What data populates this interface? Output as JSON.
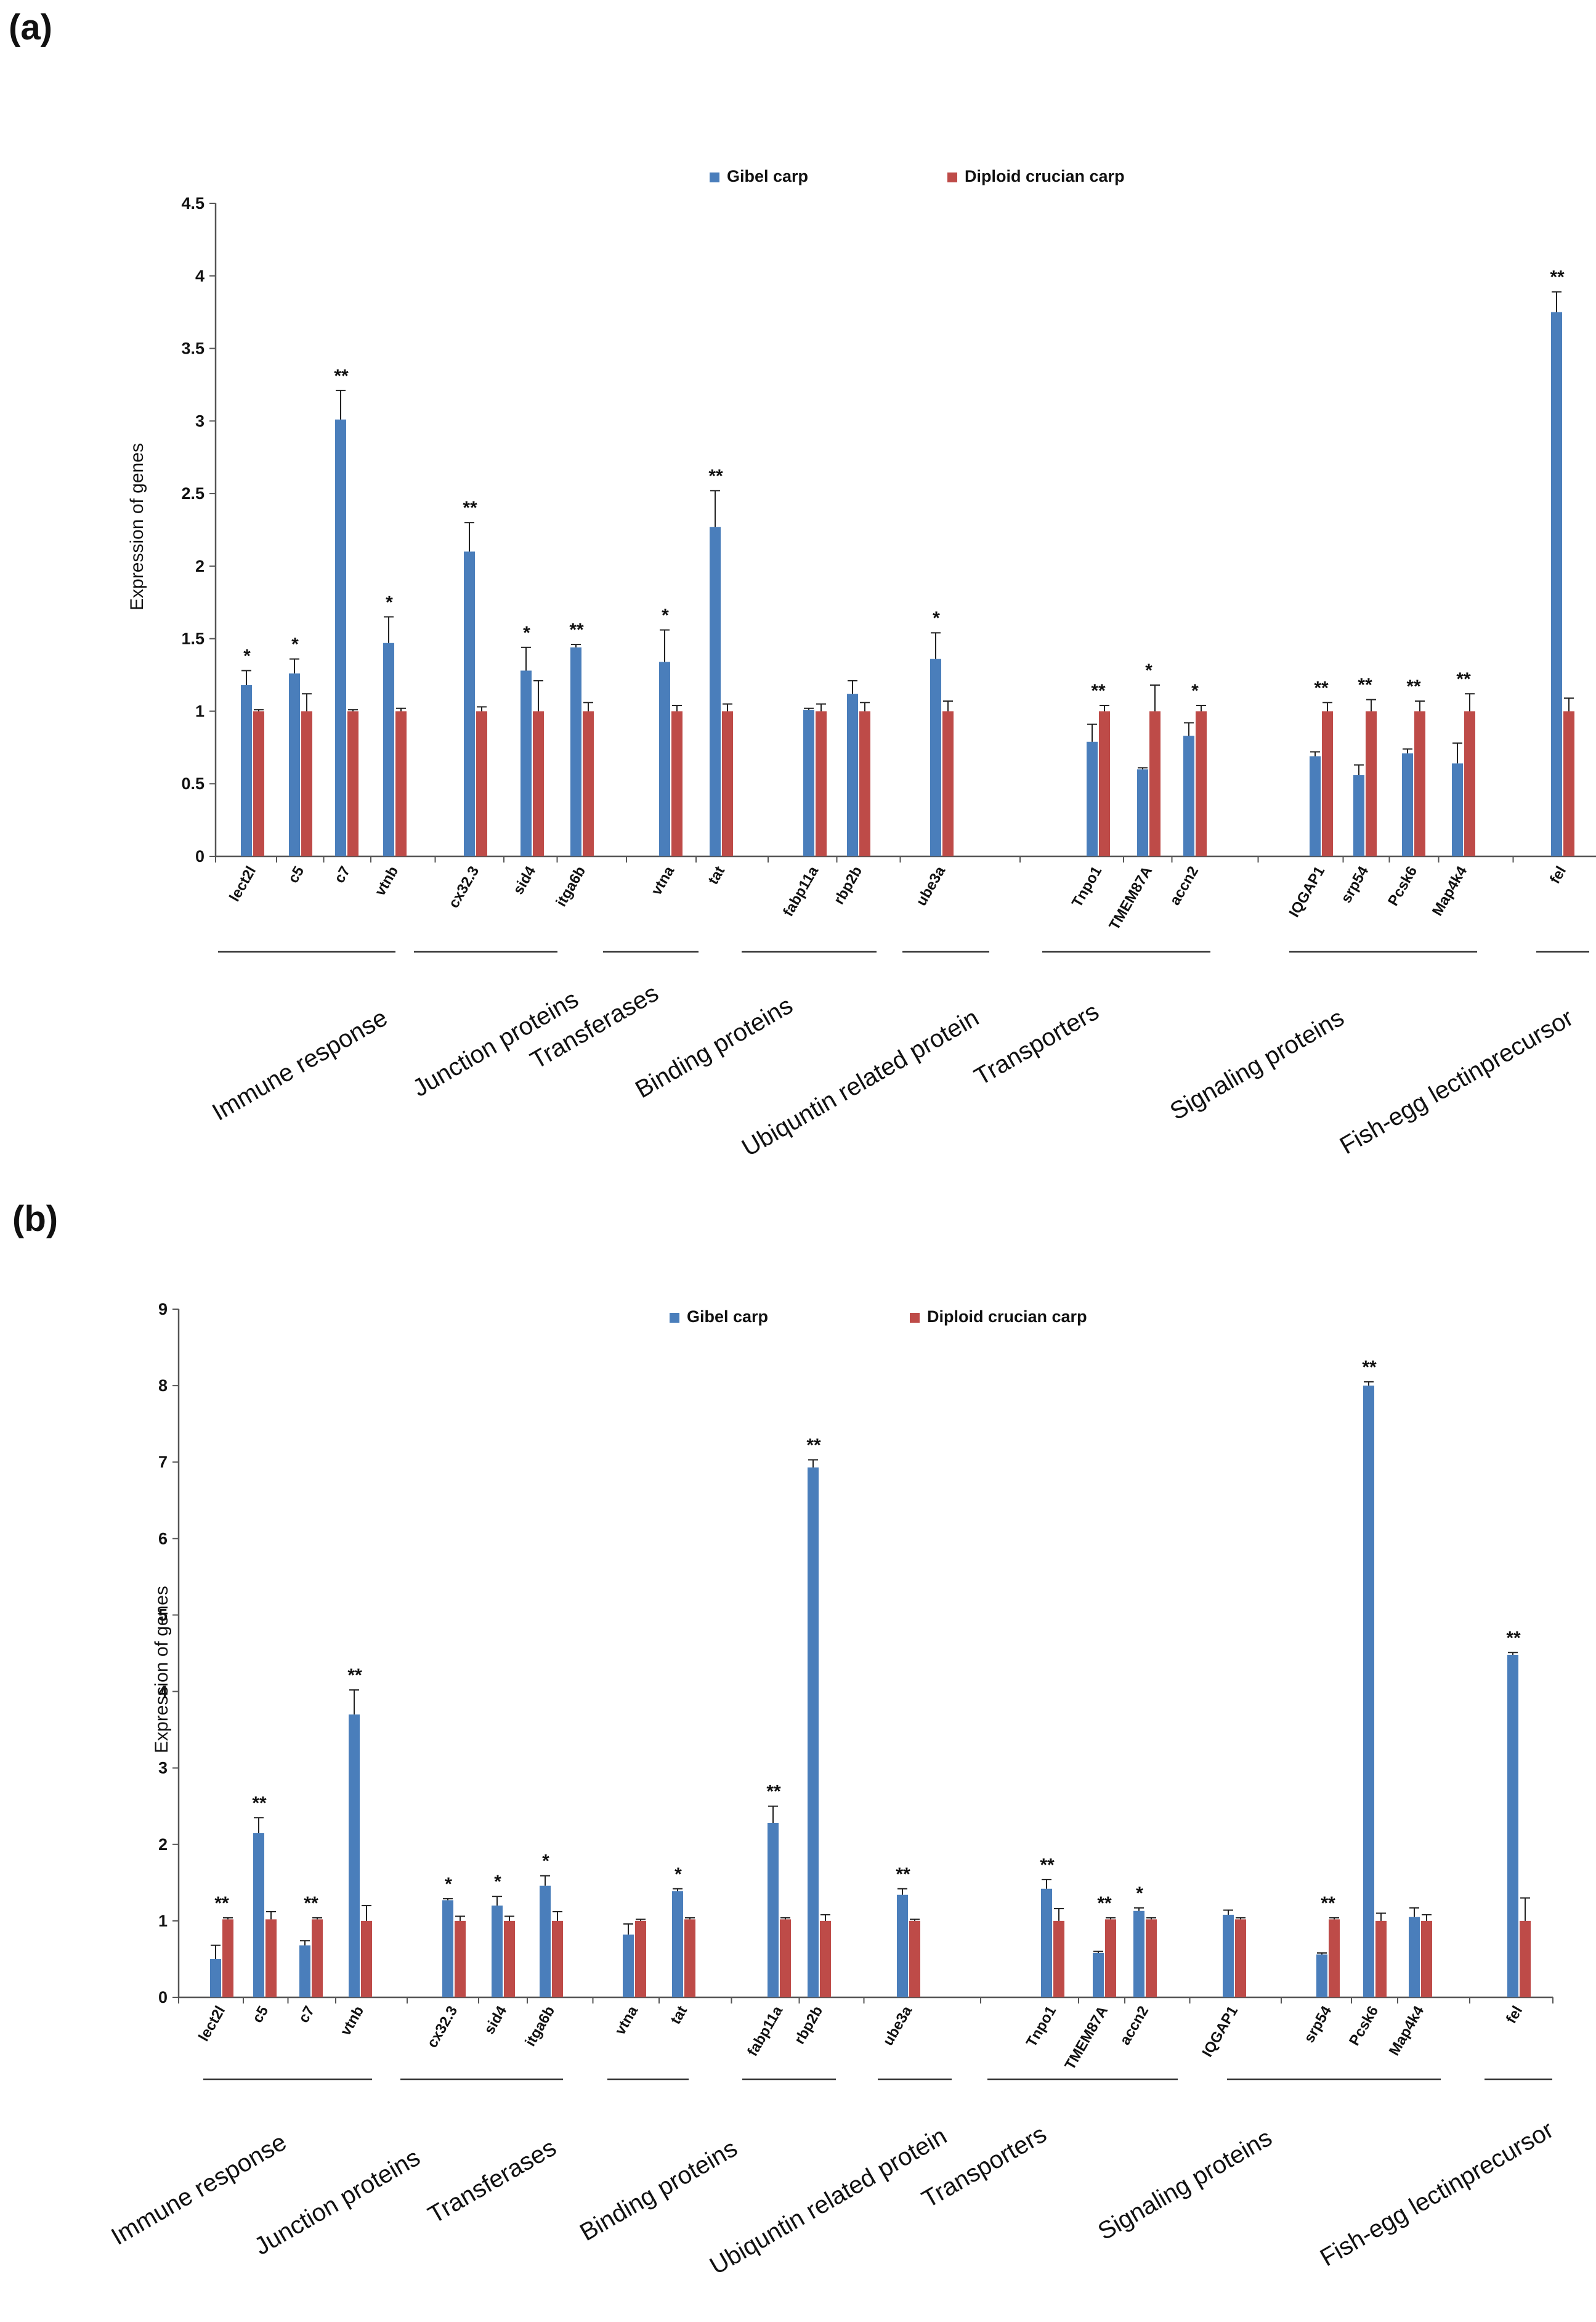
{
  "panels": [
    {
      "label": "(a)",
      "chart_data": {
        "type": "bar",
        "ylabel": "Expression of genes",
        "xlabel": "",
        "ylim": [
          0,
          4.5
        ],
        "yticks": [
          0,
          0.5,
          1,
          1.5,
          2,
          2.5,
          3,
          3.5,
          4,
          4.5
        ],
        "ytick_labels": [
          "0",
          "0.5",
          "1",
          "1.5",
          "2",
          "2.5",
          "3",
          "3.5",
          "4",
          "4.5"
        ],
        "legend": {
          "placement": "top",
          "entries": [
            "Gibel carp",
            "Diploid crucian carp"
          ]
        },
        "series_colors": [
          "#4a7ebb",
          "#be4b48"
        ],
        "categories": [
          "lect2l",
          "c5",
          "c7",
          "vtnb",
          "cx32.3",
          "sid4",
          "itga6b",
          "vtna",
          "tat",
          "fabp11a",
          "rbp2b",
          "ube3a",
          "Tnpo1",
          "TMEM87A",
          "accn2",
          "IQGAP1",
          "srp54",
          "Pcsk6",
          "Map4k4",
          "fel"
        ],
        "series": [
          {
            "name": "Gibel carp",
            "values": [
              1.18,
              1.26,
              3.01,
              1.47,
              2.1,
              1.28,
              1.44,
              1.34,
              2.27,
              1.01,
              1.12,
              1.36,
              0.79,
              0.6,
              0.83,
              0.69,
              0.56,
              0.71,
              0.64,
              3.75
            ],
            "errors": [
              0.1,
              0.1,
              0.2,
              0.18,
              0.2,
              0.16,
              0.02,
              0.22,
              0.25,
              0.01,
              0.09,
              0.18,
              0.12,
              0.01,
              0.09,
              0.03,
              0.07,
              0.03,
              0.14,
              0.14
            ]
          },
          {
            "name": "Diploid crucian carp",
            "values": [
              1.0,
              1.0,
              1.0,
              1.0,
              1.0,
              1.0,
              1.0,
              1.0,
              1.0,
              1.0,
              1.0,
              1.0,
              1.0,
              1.0,
              1.0,
              1.0,
              1.0,
              1.0,
              1.0,
              1.0
            ],
            "errors": [
              0.01,
              0.12,
              0.01,
              0.02,
              0.03,
              0.21,
              0.06,
              0.04,
              0.05,
              0.05,
              0.06,
              0.07,
              0.04,
              0.18,
              0.04,
              0.06,
              0.08,
              0.07,
              0.12,
              0.09
            ]
          }
        ],
        "significance": [
          "*",
          "*",
          "**",
          "*",
          "**",
          "*",
          "**",
          "*",
          "**",
          "",
          "",
          "*",
          "**",
          "*",
          "*",
          "**",
          "**",
          "**",
          "**",
          "**"
        ],
        "groups": [
          {
            "name": "Immune response",
            "members": [
              0,
              3
            ]
          },
          {
            "name": "Junction proteins",
            "members": [
              4,
              6
            ]
          },
          {
            "name": "Transferases",
            "members": [
              7,
              8
            ]
          },
          {
            "name": "Binding proteins",
            "members": [
              9,
              10
            ]
          },
          {
            "name": "Ubiquntin related protein",
            "members": [
              11,
              11
            ]
          },
          {
            "name": "Transporters",
            "members": [
              12,
              14
            ]
          },
          {
            "name": "Signaling proteins",
            "members": [
              15,
              18
            ]
          },
          {
            "name": "Fish-egg lectinprecursor",
            "members": [
              19,
              19
            ]
          }
        ]
      }
    },
    {
      "label": "(b)",
      "chart_data": {
        "type": "bar",
        "ylabel": "Expression of genes",
        "xlabel": "",
        "ylim": [
          0,
          9
        ],
        "yticks": [
          0,
          1,
          2,
          3,
          4,
          5,
          6,
          7,
          8,
          9
        ],
        "ytick_labels": [
          "0",
          "1",
          "2",
          "3",
          "4",
          "5",
          "6",
          "7",
          "8",
          "9"
        ],
        "legend": {
          "placement": "top",
          "entries": [
            "Gibel carp",
            "Diploid crucian carp"
          ]
        },
        "series_colors": [
          "#4a7ebb",
          "#be4b48"
        ],
        "categories": [
          "lect2l",
          "c5",
          "c7",
          "vtnb",
          "cx32.3",
          "sid4",
          "itga6b",
          "vtna",
          "tat",
          "fabp11a",
          "rbp2b",
          "ube3a",
          "Tnpo1",
          "TMEM87A",
          "accn2",
          "IQGAP1",
          "srp54",
          "Pcsk6",
          "Map4k4",
          "fel"
        ],
        "series": [
          {
            "name": "Gibel carp",
            "values": [
              0.5,
              2.15,
              0.68,
              3.7,
              1.27,
              1.2,
              1.46,
              0.82,
              1.39,
              2.28,
              6.93,
              1.34,
              1.42,
              0.58,
              1.13,
              1.08,
              0.56,
              8.0,
              1.05,
              4.48
            ],
            "errors": [
              0.18,
              0.2,
              0.06,
              0.32,
              0.02,
              0.12,
              0.13,
              0.14,
              0.03,
              0.22,
              0.1,
              0.08,
              0.12,
              0.02,
              0.04,
              0.06,
              0.02,
              0.05,
              0.12,
              0.03
            ]
          },
          {
            "name": "Diploid crucian carp",
            "values": [
              1.02,
              1.02,
              1.02,
              1.0,
              1.0,
              1.0,
              1.0,
              1.0,
              1.02,
              1.02,
              1.0,
              1.0,
              1.0,
              1.02,
              1.02,
              1.02,
              1.02,
              1.0,
              1.0,
              1.0
            ],
            "errors": [
              0.02,
              0.1,
              0.02,
              0.2,
              0.06,
              0.06,
              0.12,
              0.02,
              0.02,
              0.02,
              0.08,
              0.02,
              0.16,
              0.02,
              0.02,
              0.02,
              0.02,
              0.1,
              0.08,
              0.3
            ]
          }
        ],
        "significance": [
          "**",
          "**",
          "**",
          "**",
          "*",
          "*",
          "*",
          "",
          "*",
          "**",
          "**",
          "**",
          "**",
          "**",
          "*",
          "",
          "**",
          "**",
          "",
          "**"
        ],
        "groups": [
          {
            "name": "Immune response",
            "members": [
              0,
              3
            ]
          },
          {
            "name": "Junction proteins",
            "members": [
              4,
              6
            ]
          },
          {
            "name": "Transferases",
            "members": [
              7,
              8
            ]
          },
          {
            "name": "Binding proteins",
            "members": [
              9,
              10
            ]
          },
          {
            "name": "Ubiquntin related protein",
            "members": [
              11,
              11
            ]
          },
          {
            "name": "Transporters",
            "members": [
              12,
              14
            ]
          },
          {
            "name": "Signaling proteins",
            "members": [
              15,
              18
            ]
          },
          {
            "name": "Fish-egg lectinprecursor",
            "members": [
              19,
              19
            ]
          }
        ]
      }
    }
  ]
}
